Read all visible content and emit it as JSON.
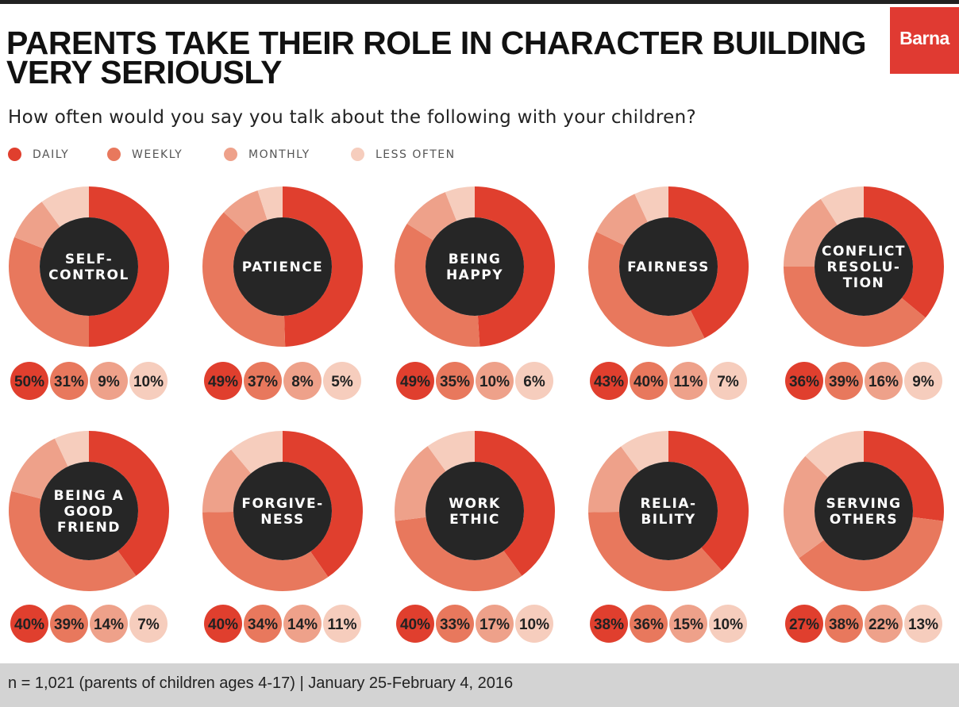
{
  "header": {
    "title_line1": "PARENTS TAKE THEIR ROLE IN CHARACTER BUILDING",
    "title_line2": "VERY SERIOUSLY",
    "logo": "Barna",
    "subtitle": "How often would you say you talk about the following with your children?"
  },
  "colors": {
    "daily": "#e03f2e",
    "weekly": "#e8785d",
    "monthly": "#eea18a",
    "less_often": "#f6cdbd",
    "center": "#262626"
  },
  "legend": [
    {
      "label": "DAILY",
      "color": "#e03f2e"
    },
    {
      "label": "WEEKLY",
      "color": "#e8785d"
    },
    {
      "label": "MONTHLY",
      "color": "#eea18a"
    },
    {
      "label": "LESS OFTEN",
      "color": "#f6cdbd"
    }
  ],
  "chart_data": {
    "type": "pie",
    "title": "PARENTS TAKE THEIR ROLE IN CHARACTER BUILDING VERY SERIOUSLY",
    "subtitle": "How often would you say you talk about the following with your children?",
    "series_names": [
      "DAILY",
      "WEEKLY",
      "MONTHLY",
      "LESS OFTEN"
    ],
    "value_suffix": "%",
    "items": [
      {
        "label": [
          "SELF-",
          "CONTROL"
        ],
        "values": [
          50,
          31,
          9,
          10
        ]
      },
      {
        "label": [
          "PATIENCE"
        ],
        "values": [
          49,
          37,
          8,
          5
        ]
      },
      {
        "label": [
          "BEING",
          "HAPPY"
        ],
        "values": [
          49,
          35,
          10,
          6
        ]
      },
      {
        "label": [
          "FAIRNESS"
        ],
        "values": [
          43,
          40,
          11,
          7
        ]
      },
      {
        "label": [
          "CONFLICT",
          "RESOLU-",
          "TION"
        ],
        "values": [
          36,
          39,
          16,
          9
        ]
      },
      {
        "label": [
          "BEING A",
          "GOOD",
          "FRIEND"
        ],
        "values": [
          40,
          39,
          14,
          7
        ]
      },
      {
        "label": [
          "FORGIVE-",
          "NESS"
        ],
        "values": [
          40,
          34,
          14,
          11
        ]
      },
      {
        "label": [
          "WORK",
          "ETHIC"
        ],
        "values": [
          40,
          33,
          17,
          10
        ]
      },
      {
        "label": [
          "RELIA-",
          "BILITY"
        ],
        "values": [
          38,
          36,
          15,
          10
        ]
      },
      {
        "label": [
          "SERVING",
          "OTHERS"
        ],
        "values": [
          27,
          38,
          22,
          13
        ]
      }
    ]
  },
  "footer": {
    "note": "n = 1,021 (parents of children ages 4-17) | January 25-February 4, 2016"
  }
}
